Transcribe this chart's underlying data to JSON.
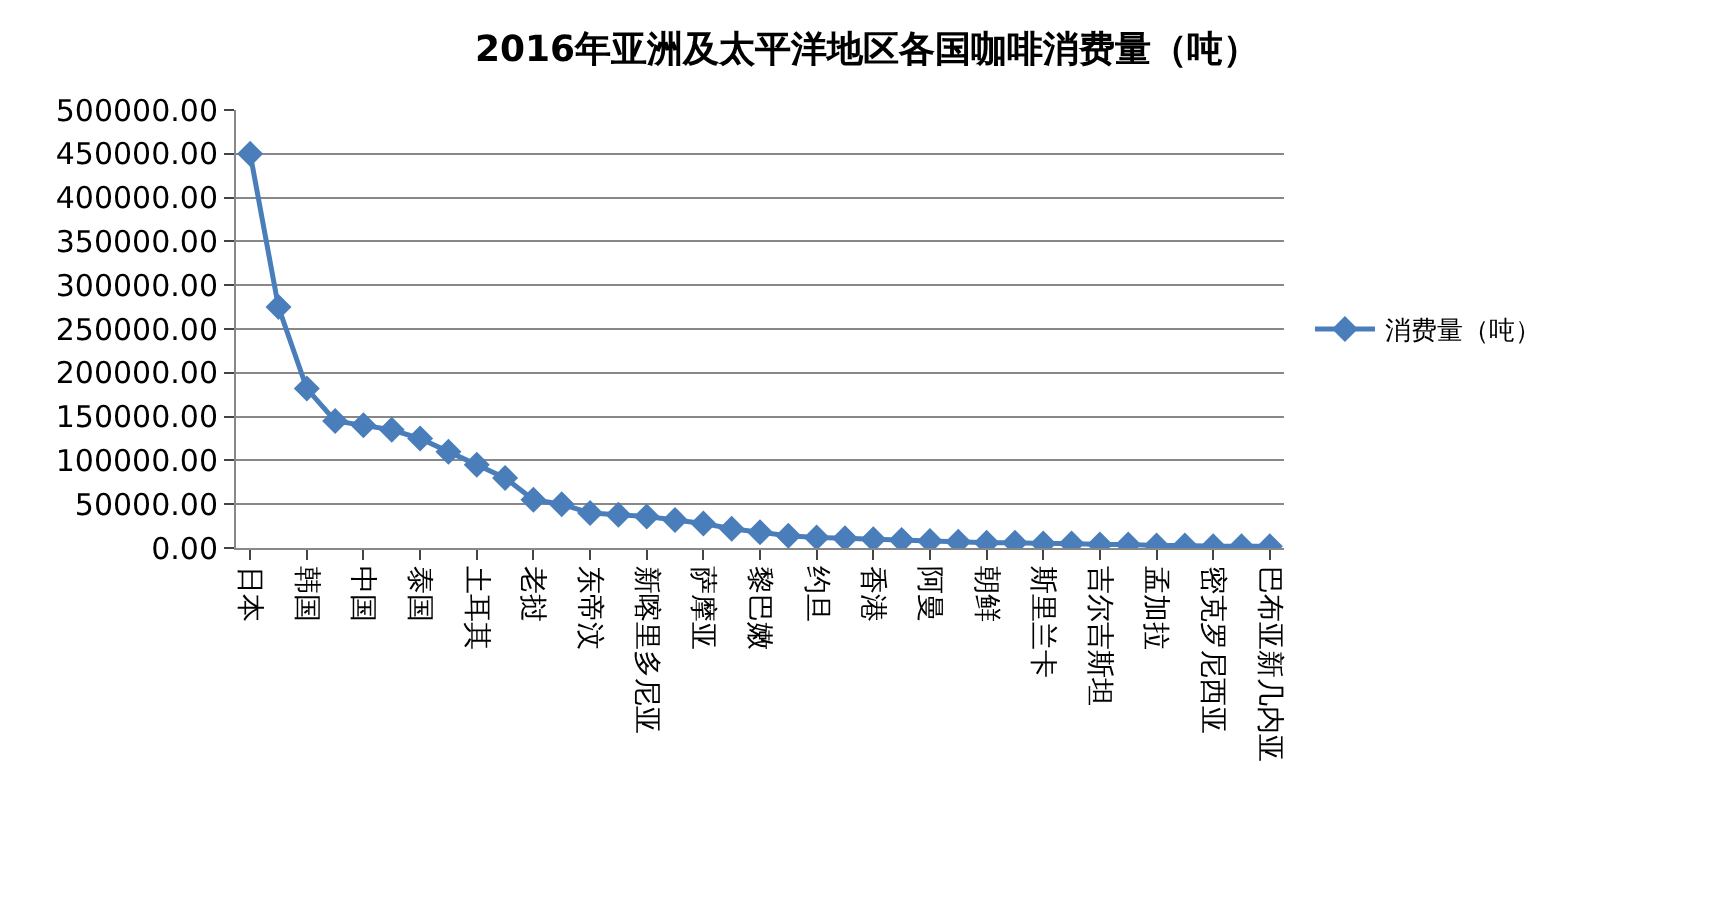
{
  "chart_data": {
    "type": "line",
    "title": "2016年亚洲及太平洋地区各国咖啡消费量（吨）",
    "categories": [
      "日本",
      null,
      "韩国",
      null,
      "中国",
      null,
      "泰国",
      null,
      "土耳其",
      null,
      "老挝",
      null,
      "东帝汶",
      null,
      "新喀里多尼亚",
      null,
      "萨摩亚",
      null,
      "黎巴嫩",
      null,
      "约旦",
      null,
      "香港",
      null,
      "阿曼",
      null,
      "朝鲜",
      null,
      "斯里兰卡",
      null,
      "吉尔吉斯坦",
      null,
      "孟加拉",
      null,
      "密克罗尼西亚",
      null,
      "巴布亚新几内亚"
    ],
    "series": [
      {
        "name": "消费量（吨）",
        "color": "#4a7ebb",
        "values": [
          450000,
          275000,
          182000,
          145000,
          140000,
          135000,
          125000,
          110000,
          95000,
          80000,
          55000,
          50000,
          40000,
          38000,
          36000,
          32000,
          28000,
          22000,
          18000,
          14000,
          12000,
          11000,
          10000,
          9000,
          8000,
          7000,
          6000,
          6000,
          5000,
          5000,
          4000,
          4000,
          3000,
          3000,
          2000,
          2000,
          2000
        ]
      }
    ],
    "ylim": [
      0,
      500000
    ],
    "yticks": [
      {
        "value": 0,
        "label": "0.00"
      },
      {
        "value": 50000,
        "label": "50000.00"
      },
      {
        "value": 100000,
        "label": "100000.00"
      },
      {
        "value": 150000,
        "label": "150000.00"
      },
      {
        "value": 200000,
        "label": "200000.00"
      },
      {
        "value": 250000,
        "label": "250000.00"
      },
      {
        "value": 300000,
        "label": "300000.00"
      },
      {
        "value": 350000,
        "label": "350000.00"
      },
      {
        "value": 400000,
        "label": "400000.00"
      },
      {
        "value": 450000,
        "label": "450000.00"
      },
      {
        "value": 500000,
        "label": "500000.00"
      }
    ],
    "grid": "y",
    "legend": "right",
    "marker": "diamond",
    "line_style": "solid"
  }
}
